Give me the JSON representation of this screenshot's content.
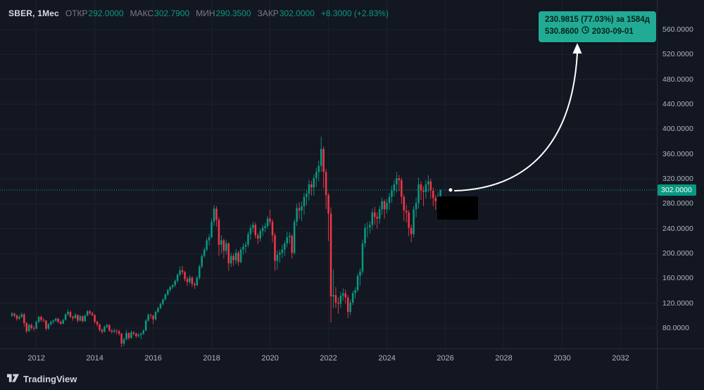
{
  "header": {
    "symbol": "SBER, 1Мес",
    "ohlc": [
      {
        "label": "ОТКР",
        "value": "292.0000"
      },
      {
        "label": "МАКС",
        "value": "302.7900"
      },
      {
        "label": "МИН",
        "value": "290.3500"
      },
      {
        "label": "ЗАКР",
        "value": "302.0000"
      }
    ],
    "change": "+8.3000 (+2.83%)"
  },
  "callout": {
    "line1": "230.9815 (77.03%) за 1584д",
    "target_price": "530.8600",
    "target_date": "2030-09-01"
  },
  "price_axis": {
    "labels": [
      "560.0000",
      "520.0000",
      "480.0000",
      "440.0000",
      "400.0000",
      "360.0000",
      "320.0000",
      "280.0000",
      "240.0000",
      "200.0000",
      "160.0000",
      "120.0000",
      "80.0000"
    ],
    "current": "302.0000"
  },
  "time_axis": [
    "2012",
    "2014",
    "2016",
    "2018",
    "2020",
    "2022",
    "2024",
    "2026",
    "2028",
    "2030",
    "2032"
  ],
  "footer": {
    "brand": "TradingView"
  },
  "colors": {
    "up": "#089981",
    "down": "#f23645",
    "accent": "#22ab94",
    "background": "#131722",
    "grid": "#1e222d"
  },
  "chart_data": {
    "type": "candlestick",
    "title": "SBER monthly candlestick chart with projection to 530.86 on 2030-09-01",
    "symbol": "SBER",
    "interval": "1Мес",
    "start_month": "2011-03",
    "last_price": 302.0,
    "ylim": [
      45,
      580
    ],
    "y_axis_ticks": [
      80,
      120,
      160,
      200,
      240,
      280,
      320,
      360,
      400,
      440,
      480,
      520,
      560
    ],
    "x_axis_years": [
      2012,
      2014,
      2016,
      2018,
      2020,
      2022,
      2024,
      2026,
      2028,
      2030,
      2032
    ],
    "projection": {
      "from_price": 302.0,
      "to_price": 530.86,
      "change": 230.9815,
      "percent": 77.03,
      "duration": "1584д",
      "date": "2030-09-01"
    },
    "candles": [
      [
        100,
        106,
        98,
        103
      ],
      [
        103,
        105,
        97,
        100
      ],
      [
        100,
        102,
        92,
        95
      ],
      [
        95,
        101,
        93,
        98
      ],
      [
        98,
        105,
        96,
        102
      ],
      [
        102,
        104,
        82,
        88
      ],
      [
        88,
        90,
        72,
        75
      ],
      [
        75,
        87,
        74,
        85
      ],
      [
        85,
        87,
        77,
        80
      ],
      [
        80,
        83,
        75,
        79
      ],
      [
        79,
        92,
        78,
        90
      ],
      [
        90,
        100,
        88,
        98
      ],
      [
        98,
        100,
        90,
        93
      ],
      [
        93,
        96,
        89,
        92
      ],
      [
        92,
        93,
        76,
        79
      ],
      [
        79,
        88,
        77,
        86
      ],
      [
        86,
        92,
        84,
        90
      ],
      [
        90,
        94,
        87,
        92
      ],
      [
        92,
        97,
        90,
        95
      ],
      [
        95,
        96,
        88,
        90
      ],
      [
        90,
        92,
        85,
        87
      ],
      [
        87,
        95,
        86,
        93
      ],
      [
        93,
        104,
        92,
        102
      ],
      [
        102,
        110,
        100,
        106
      ],
      [
        106,
        108,
        96,
        98
      ],
      [
        98,
        100,
        92,
        96
      ],
      [
        96,
        104,
        95,
        101
      ],
      [
        101,
        102,
        89,
        92
      ],
      [
        92,
        101,
        91,
        99
      ],
      [
        99,
        100,
        89,
        91
      ],
      [
        91,
        102,
        90,
        100
      ],
      [
        100,
        109,
        99,
        107
      ],
      [
        107,
        109,
        101,
        104
      ],
      [
        104,
        106,
        99,
        101
      ],
      [
        101,
        102,
        87,
        90
      ],
      [
        90,
        92,
        82,
        86
      ],
      [
        86,
        87,
        74,
        77
      ],
      [
        77,
        79,
        71,
        74
      ],
      [
        74,
        84,
        73,
        82
      ],
      [
        82,
        87,
        80,
        85
      ],
      [
        85,
        86,
        74,
        76
      ],
      [
        76,
        78,
        71,
        74
      ],
      [
        74,
        79,
        72,
        76
      ],
      [
        76,
        78,
        70,
        75
      ],
      [
        75,
        77,
        68,
        71
      ],
      [
        71,
        72,
        49,
        55
      ],
      [
        55,
        65,
        51,
        62
      ],
      [
        62,
        77,
        60,
        72
      ],
      [
        72,
        73,
        61,
        64
      ],
      [
        64,
        76,
        63,
        73
      ],
      [
        73,
        75,
        68,
        71
      ],
      [
        71,
        73,
        64,
        67
      ],
      [
        67,
        72,
        65,
        69
      ],
      [
        69,
        73,
        62,
        71
      ],
      [
        71,
        78,
        69,
        76
      ],
      [
        76,
        94,
        75,
        92
      ],
      [
        92,
        104,
        90,
        101
      ],
      [
        101,
        103,
        95,
        100
      ],
      [
        100,
        101,
        86,
        94
      ],
      [
        94,
        108,
        92,
        106
      ],
      [
        106,
        114,
        104,
        112
      ],
      [
        112,
        121,
        110,
        119
      ],
      [
        119,
        128,
        116,
        126
      ],
      [
        126,
        136,
        124,
        134
      ],
      [
        134,
        143,
        132,
        141
      ],
      [
        141,
        148,
        138,
        146
      ],
      [
        146,
        151,
        143,
        149
      ],
      [
        149,
        158,
        146,
        156
      ],
      [
        156,
        168,
        153,
        166
      ],
      [
        166,
        179,
        163,
        173
      ],
      [
        173,
        180,
        166,
        170
      ],
      [
        170,
        172,
        155,
        159
      ],
      [
        159,
        163,
        148,
        154
      ],
      [
        154,
        165,
        151,
        161
      ],
      [
        161,
        163,
        146,
        151
      ],
      [
        151,
        154,
        143,
        149
      ],
      [
        149,
        164,
        147,
        161
      ],
      [
        161,
        182,
        158,
        179
      ],
      [
        179,
        199,
        176,
        196
      ],
      [
        196,
        210,
        193,
        206
      ],
      [
        206,
        225,
        203,
        221
      ],
      [
        221,
        231,
        213,
        226
      ],
      [
        226,
        256,
        224,
        251
      ],
      [
        251,
        278,
        244,
        272
      ],
      [
        272,
        276,
        243,
        254
      ],
      [
        254,
        258,
        196,
        214
      ],
      [
        214,
        229,
        200,
        221
      ],
      [
        221,
        224,
        192,
        204
      ],
      [
        204,
        222,
        198,
        216
      ],
      [
        216,
        218,
        172,
        184
      ],
      [
        184,
        201,
        178,
        196
      ],
      [
        196,
        200,
        180,
        189
      ],
      [
        189,
        207,
        183,
        201
      ],
      [
        201,
        204,
        180,
        186
      ],
      [
        186,
        210,
        184,
        206
      ],
      [
        206,
        216,
        198,
        211
      ],
      [
        211,
        219,
        201,
        214
      ],
      [
        214,
        235,
        210,
        231
      ],
      [
        231,
        246,
        222,
        241
      ],
      [
        241,
        251,
        234,
        246
      ],
      [
        246,
        250,
        224,
        229
      ],
      [
        229,
        233,
        215,
        224
      ],
      [
        224,
        240,
        219,
        236
      ],
      [
        236,
        246,
        228,
        241
      ],
      [
        241,
        249,
        234,
        244
      ],
      [
        244,
        260,
        240,
        256
      ],
      [
        256,
        270,
        246,
        251
      ],
      [
        251,
        255,
        218,
        229
      ],
      [
        229,
        233,
        172,
        188
      ],
      [
        188,
        205,
        174,
        198
      ],
      [
        198,
        206,
        185,
        201
      ],
      [
        201,
        214,
        192,
        206
      ],
      [
        206,
        220,
        196,
        216
      ],
      [
        216,
        235,
        210,
        226
      ],
      [
        226,
        234,
        216,
        228
      ],
      [
        228,
        231,
        192,
        201
      ],
      [
        201,
        255,
        198,
        251
      ],
      [
        251,
        280,
        244,
        273
      ],
      [
        273,
        282,
        255,
        269
      ],
      [
        269,
        283,
        252,
        276
      ],
      [
        276,
        297,
        262,
        291
      ],
      [
        291,
        302,
        277,
        296
      ],
      [
        296,
        318,
        285,
        311
      ],
      [
        311,
        317,
        293,
        306
      ],
      [
        306,
        327,
        293,
        321
      ],
      [
        321,
        338,
        307,
        331
      ],
      [
        331,
        349,
        316,
        341
      ],
      [
        341,
        388,
        331,
        368
      ],
      [
        368,
        372,
        305,
        331
      ],
      [
        331,
        336,
        271,
        294
      ],
      [
        294,
        297,
        220,
        264
      ],
      [
        264,
        274,
        89,
        131
      ],
      [
        131,
        174,
        112,
        133
      ],
      [
        133,
        146,
        112,
        121
      ],
      [
        121,
        129,
        103,
        119
      ],
      [
        119,
        138,
        112,
        132
      ],
      [
        132,
        144,
        124,
        136
      ],
      [
        136,
        142,
        119,
        129
      ],
      [
        129,
        133,
        96,
        106
      ],
      [
        106,
        126,
        101,
        121
      ],
      [
        121,
        140,
        117,
        136
      ],
      [
        136,
        146,
        128,
        141
      ],
      [
        141,
        168,
        138,
        164
      ],
      [
        164,
        176,
        148,
        171
      ],
      [
        171,
        222,
        166,
        216
      ],
      [
        216,
        248,
        210,
        241
      ],
      [
        241,
        250,
        226,
        242
      ],
      [
        242,
        252,
        232,
        246
      ],
      [
        246,
        272,
        238,
        266
      ],
      [
        266,
        275,
        246,
        259
      ],
      [
        259,
        266,
        240,
        256
      ],
      [
        256,
        277,
        248,
        271
      ],
      [
        271,
        290,
        262,
        284
      ],
      [
        284,
        287,
        256,
        271
      ],
      [
        271,
        288,
        264,
        281
      ],
      [
        281,
        297,
        270,
        291
      ],
      [
        291,
        309,
        282,
        301
      ],
      [
        301,
        318,
        292,
        311
      ],
      [
        311,
        331,
        298,
        321
      ],
      [
        321,
        326,
        300,
        318
      ],
      [
        318,
        322,
        280,
        291
      ],
      [
        291,
        295,
        252,
        269
      ],
      [
        269,
        278,
        250,
        266
      ],
      [
        266,
        270,
        228,
        241
      ],
      [
        241,
        246,
        218,
        231
      ],
      [
        231,
        276,
        226,
        271
      ],
      [
        271,
        290,
        258,
        281
      ],
      [
        281,
        322,
        272,
        311
      ],
      [
        311,
        316,
        286,
        301
      ],
      [
        301,
        308,
        276,
        299
      ],
      [
        299,
        318,
        288,
        311
      ],
      [
        311,
        326,
        298,
        316
      ],
      [
        316,
        320,
        288,
        301
      ],
      [
        301,
        306,
        276,
        289
      ],
      [
        289,
        294,
        270,
        284
      ],
      [
        284,
        298,
        274,
        292
      ],
      [
        292,
        302.79,
        290.35,
        302
      ]
    ]
  }
}
